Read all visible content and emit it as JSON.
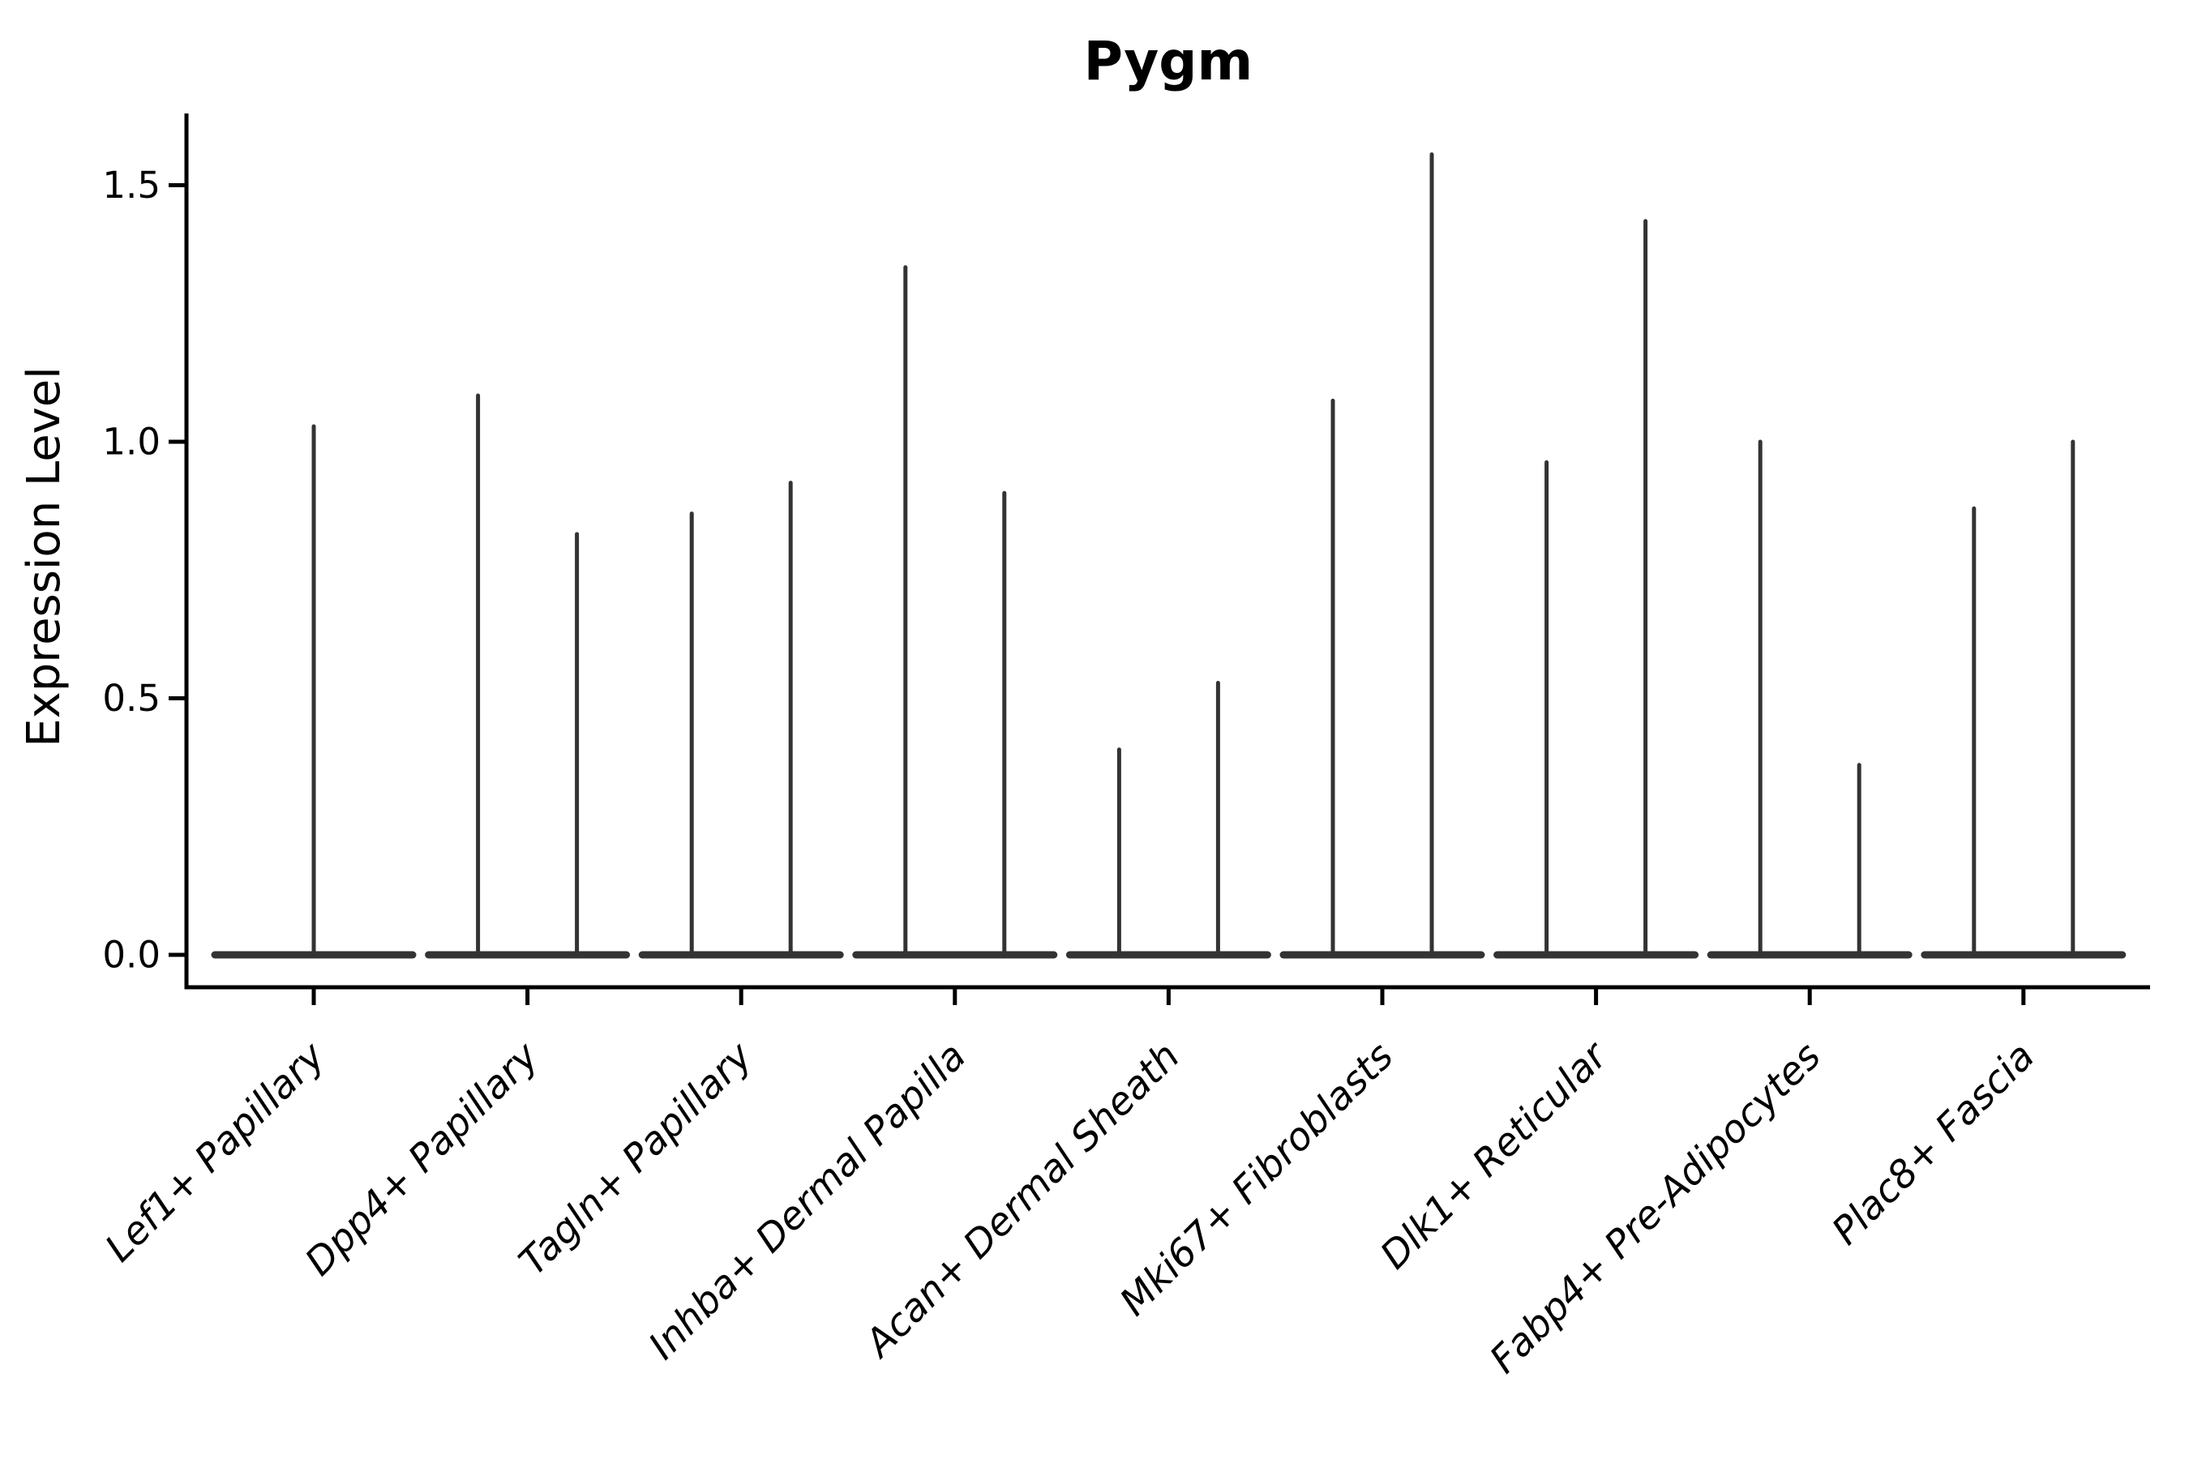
{
  "title": "Pygm",
  "y_axis": {
    "label": "Expression Level",
    "tick_labels": [
      "0.0",
      "0.5",
      "1.0",
      "1.5"
    ]
  },
  "colors": {
    "background": "#ffffff",
    "axis": "#000000",
    "text": "#000000",
    "violin_stroke": "#333333"
  },
  "chart_data": {
    "type": "violin",
    "title": "Pygm",
    "xlabel": "",
    "ylabel": "Expression Level",
    "grid": false,
    "legend": null,
    "yticks": [
      0.0,
      0.5,
      1.0,
      1.5
    ],
    "ylim": [
      -0.06,
      1.64
    ],
    "x_tick_rotation_deg": 45,
    "categories": [
      "Lef1+ Papillary",
      "Dpp4+ Papillary",
      "Tagln+ Papillary",
      "Inhba+ Dermal Papilla",
      "Acan+ Dermal Sheath",
      "Mki67+ Fibroblasts",
      "Dlk1+ Reticular",
      "Fabp4+ Pre-Adipocytes",
      "Plac8+ Fascia"
    ],
    "violins": [
      {
        "category": "Lef1+ Papillary",
        "spikes": [
          {
            "position": "center",
            "max_expression": 1.03
          }
        ]
      },
      {
        "category": "Dpp4+ Papillary",
        "spikes": [
          {
            "position": "left",
            "max_expression": 1.09
          },
          {
            "position": "right",
            "max_expression": 0.82
          }
        ]
      },
      {
        "category": "Tagln+ Papillary",
        "spikes": [
          {
            "position": "left",
            "max_expression": 0.86
          },
          {
            "position": "right",
            "max_expression": 0.92
          }
        ]
      },
      {
        "category": "Inhba+ Dermal Papilla",
        "spikes": [
          {
            "position": "left",
            "max_expression": 1.34
          },
          {
            "position": "right",
            "max_expression": 0.9
          }
        ]
      },
      {
        "category": "Acan+ Dermal Sheath",
        "spikes": [
          {
            "position": "left",
            "max_expression": 0.4
          },
          {
            "position": "right",
            "max_expression": 0.53
          }
        ]
      },
      {
        "category": "Mki67+ Fibroblasts",
        "spikes": [
          {
            "position": "left",
            "max_expression": 1.08
          },
          {
            "position": "right",
            "max_expression": 1.56
          }
        ]
      },
      {
        "category": "Dlk1+ Reticular",
        "spikes": [
          {
            "position": "left",
            "max_expression": 0.96
          },
          {
            "position": "right",
            "max_expression": 1.43
          }
        ]
      },
      {
        "category": "Fabp4+ Pre-Adipocytes",
        "spikes": [
          {
            "position": "left",
            "max_expression": 1.0
          },
          {
            "position": "right",
            "max_expression": 0.37
          }
        ]
      },
      {
        "category": "Plac8+ Fascia",
        "spikes": [
          {
            "position": "left",
            "max_expression": 0.87
          },
          {
            "position": "right",
            "max_expression": 1.0
          }
        ]
      }
    ]
  }
}
